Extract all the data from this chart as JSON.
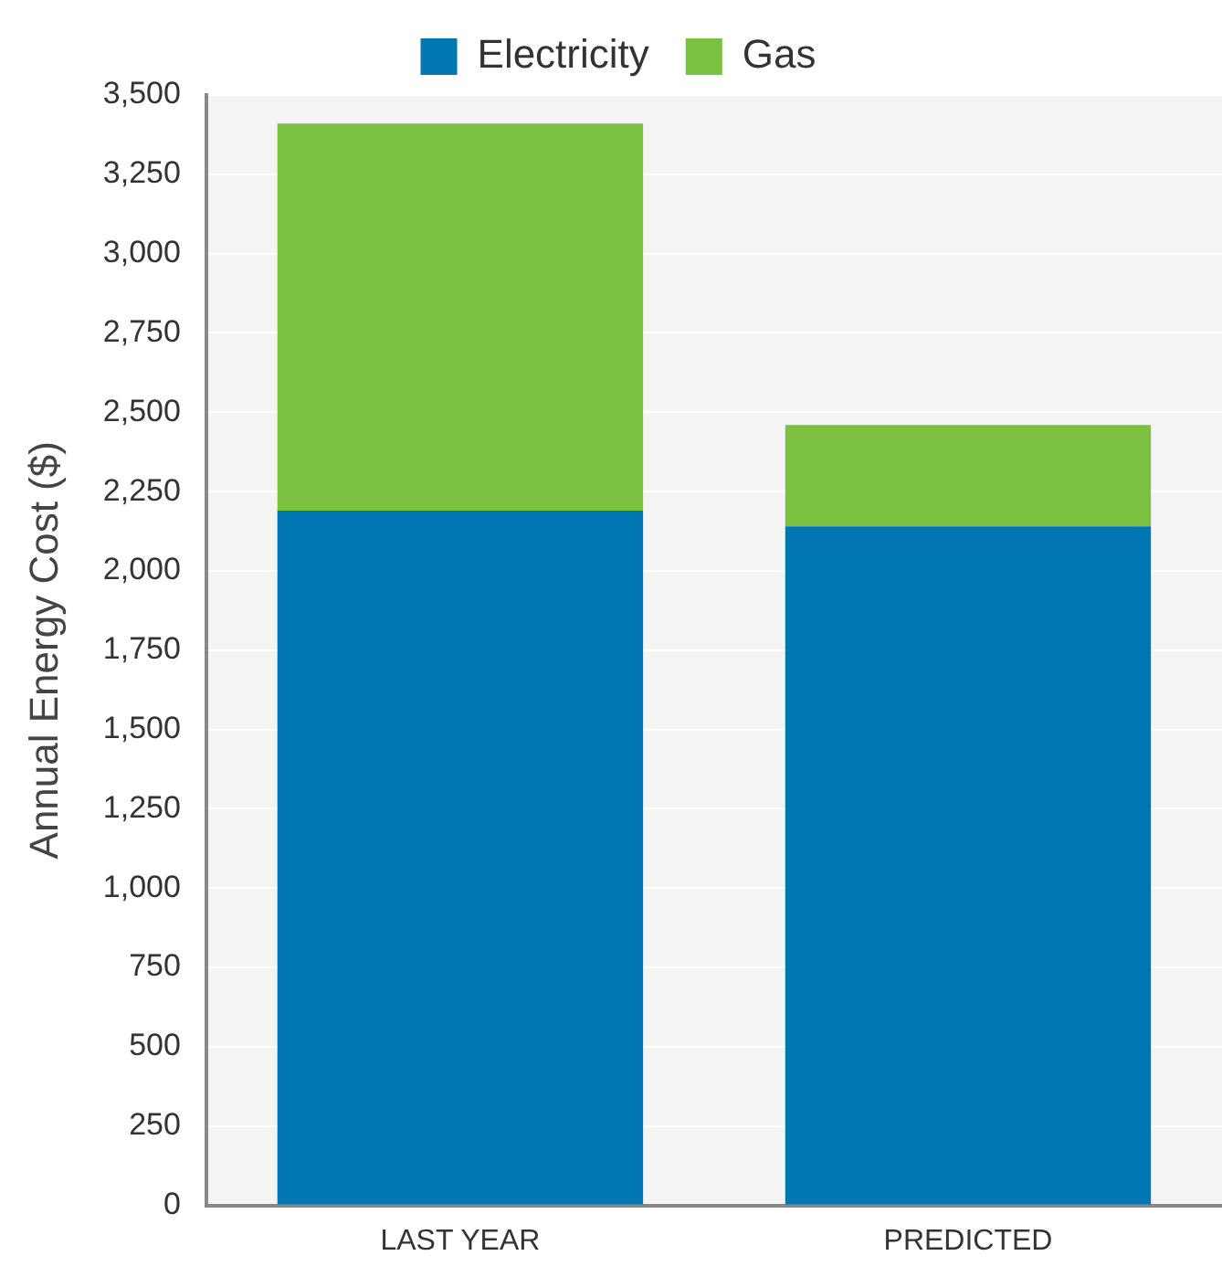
{
  "chart_data": {
    "type": "bar",
    "stacked": true,
    "ylabel": "Annual Energy Cost ($)",
    "categories": [
      "LAST YEAR",
      "PREDICTED"
    ],
    "series": [
      {
        "name": "Electricity",
        "color": "#0077b0",
        "values": [
          2190,
          2140
        ]
      },
      {
        "name": "Gas",
        "color": "#7dc142",
        "values": [
          1220,
          320
        ]
      }
    ],
    "ylim": [
      0,
      3500
    ],
    "yticks": [
      0,
      {
        "value": 250,
        "label": "250"
      },
      {
        "value": 500,
        "label": "500"
      },
      {
        "value": 750,
        "label": "750"
      },
      {
        "value": 1000,
        "label": "1,000"
      },
      {
        "value": 1250,
        "label": "1,250"
      },
      {
        "value": 1500,
        "label": "1,500"
      },
      {
        "value": 1750,
        "label": "1,750"
      },
      {
        "value": 2000,
        "label": "2,000"
      },
      {
        "value": 2250,
        "label": "2,250"
      },
      {
        "value": 2500,
        "label": "2,500"
      },
      {
        "value": 2750,
        "label": "2,750"
      },
      {
        "value": 3000,
        "label": "3,000"
      },
      {
        "value": 3250,
        "label": "3,250"
      },
      {
        "value": 3500,
        "label": "3,500"
      }
    ],
    "grid": "y",
    "legend": "top"
  }
}
